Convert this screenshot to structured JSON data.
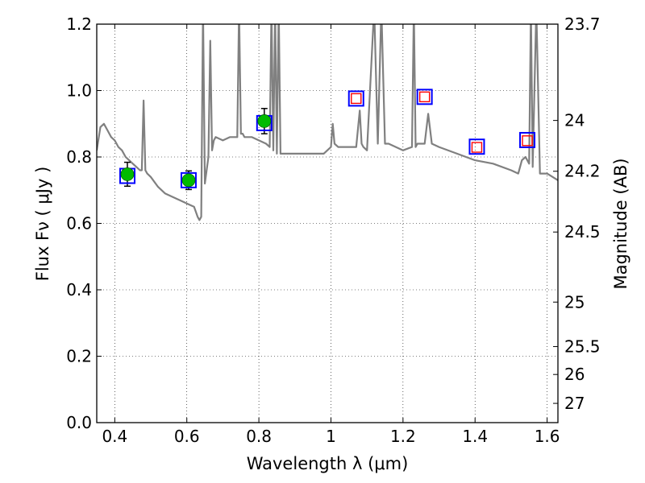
{
  "chart_data": {
    "type": "scatter",
    "xlabel": "Wavelength  λ (μm)",
    "ylabel": "Flux  Fν  ( μJy )",
    "ylabel_right": "Magnitude (AB)",
    "xlim": [
      0.35,
      1.63
    ],
    "ylim": [
      0.0,
      1.2
    ],
    "grid": true,
    "x_ticks": [
      0.4,
      0.6,
      0.8,
      1.0,
      1.2,
      1.4,
      1.6
    ],
    "x_tick_labels": [
      "0.4",
      "0.6",
      "0.8",
      "1",
      "1.2",
      "1.4",
      "1.6"
    ],
    "y_ticks": [
      0.0,
      0.2,
      0.4,
      0.6,
      0.8,
      1.0,
      1.2
    ],
    "y_tick_labels": [
      "0.0",
      "0.2",
      "0.4",
      "0.6",
      "0.8",
      "1.0",
      "1.2"
    ],
    "right_ticks": [
      {
        "label": "23.7",
        "flux": 1.2
      },
      {
        "label": "24",
        "flux": 0.91
      },
      {
        "label": "24.2",
        "flux": 0.757
      },
      {
        "label": "24.5",
        "flux": 0.574
      },
      {
        "label": "25",
        "flux": 0.363
      },
      {
        "label": "25.5",
        "flux": 0.229
      },
      {
        "label": "26",
        "flux": 0.145
      },
      {
        "label": "27",
        "flux": 0.058
      }
    ],
    "series": [
      {
        "kind": "model-spectrum",
        "color": "#808080",
        "x": [
          0.35,
          0.36,
          0.37,
          0.38,
          0.39,
          0.4,
          0.41,
          0.42,
          0.43,
          0.44,
          0.45,
          0.46,
          0.47,
          0.475,
          0.48,
          0.485,
          0.49,
          0.5,
          0.52,
          0.54,
          0.56,
          0.58,
          0.6,
          0.62,
          0.63,
          0.635,
          0.64,
          0.645,
          0.65,
          0.655,
          0.66,
          0.665,
          0.67,
          0.675,
          0.68,
          0.7,
          0.72,
          0.74,
          0.745,
          0.75,
          0.755,
          0.76,
          0.78,
          0.8,
          0.82,
          0.83,
          0.835,
          0.84,
          0.845,
          0.85,
          0.855,
          0.86,
          0.87,
          0.88,
          0.9,
          0.92,
          0.95,
          0.98,
          1.0,
          1.005,
          1.01,
          1.02,
          1.05,
          1.07,
          1.08,
          1.085,
          1.09,
          1.1,
          1.12,
          1.13,
          1.14,
          1.15,
          1.16,
          1.2,
          1.225,
          1.23,
          1.235,
          1.24,
          1.26,
          1.27,
          1.28,
          1.3,
          1.35,
          1.4,
          1.45,
          1.5,
          1.52,
          1.53,
          1.54,
          1.55,
          1.555,
          1.56,
          1.57,
          1.58,
          1.6,
          1.63
        ],
        "y": [
          0.82,
          0.89,
          0.9,
          0.88,
          0.86,
          0.85,
          0.83,
          0.82,
          0.8,
          0.79,
          0.78,
          0.77,
          0.76,
          0.76,
          0.97,
          0.76,
          0.75,
          0.74,
          0.71,
          0.69,
          0.68,
          0.67,
          0.66,
          0.65,
          0.62,
          0.61,
          0.62,
          1.25,
          0.72,
          0.76,
          0.8,
          1.15,
          0.82,
          0.85,
          0.86,
          0.85,
          0.86,
          0.86,
          1.25,
          0.87,
          0.87,
          0.86,
          0.86,
          0.85,
          0.84,
          0.83,
          1.25,
          0.82,
          1.25,
          0.81,
          1.25,
          0.81,
          0.81,
          0.81,
          0.81,
          0.81,
          0.81,
          0.81,
          0.83,
          0.9,
          0.84,
          0.83,
          0.83,
          0.83,
          0.94,
          0.84,
          0.83,
          0.82,
          1.25,
          0.84,
          1.25,
          0.84,
          0.84,
          0.82,
          0.83,
          1.25,
          0.83,
          0.84,
          0.84,
          0.93,
          0.84,
          0.83,
          0.81,
          0.79,
          0.78,
          0.76,
          0.75,
          0.79,
          0.8,
          0.78,
          1.25,
          0.77,
          1.25,
          0.75,
          0.75,
          0.73
        ]
      },
      {
        "kind": "observed",
        "marker": "circle",
        "color": "#00bb00",
        "x": [
          0.435,
          0.605,
          0.815
        ],
        "y": [
          0.748,
          0.73,
          0.908
        ],
        "yerr": [
          0.036,
          0.028,
          0.038
        ]
      },
      {
        "kind": "model-bandpass",
        "marker": "square",
        "color": "#0000ff",
        "x": [
          0.435,
          0.605,
          0.815,
          1.07,
          1.26,
          1.405,
          1.545
        ],
        "y": [
          0.743,
          0.73,
          0.902,
          0.976,
          0.981,
          0.831,
          0.851
        ]
      },
      {
        "kind": "upper-limit",
        "marker": "open-square",
        "color": "#ff0000",
        "x": [
          1.07,
          1.26,
          1.405,
          1.545
        ],
        "y": [
          0.976,
          0.981,
          0.829,
          0.849
        ]
      }
    ]
  }
}
